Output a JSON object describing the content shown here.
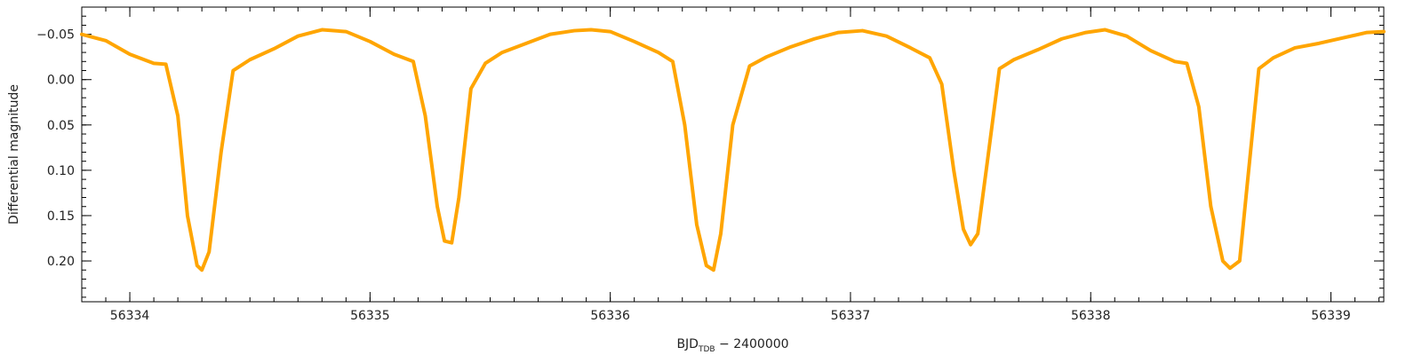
{
  "chart_data": {
    "type": "line",
    "xlabel_main": "BJD",
    "xlabel_sub": "TDB",
    "xlabel_rest": " − 2400000",
    "ylabel": "Differential magnitude",
    "xlim": [
      56333.8,
      56339.22
    ],
    "ylim": [
      0.245,
      -0.08
    ],
    "y_inverted": true,
    "xticks": [
      56334,
      56335,
      56336,
      56337,
      56338,
      56339
    ],
    "xtick_labels": [
      "56334",
      "56335",
      "56336",
      "56337",
      "56338",
      "56339"
    ],
    "yticks": [
      -0.05,
      0.0,
      0.05,
      0.1,
      0.15,
      0.2
    ],
    "ytick_labels": [
      "−0.05",
      "0.00",
      "0.05",
      "0.10",
      "0.15",
      "0.20"
    ],
    "grid": false,
    "series": [
      {
        "color": "#FFA500",
        "x": [
          56333.8,
          56333.9,
          56334.0,
          56334.1,
          56334.15,
          56334.2,
          56334.24,
          56334.28,
          56334.3,
          56334.33,
          56334.38,
          56334.43,
          56334.5,
          56334.6,
          56334.7,
          56334.8,
          56334.9,
          56335.0,
          56335.1,
          56335.18,
          56335.23,
          56335.28,
          56335.31,
          56335.34,
          56335.37,
          56335.42,
          56335.48,
          56335.55,
          56335.65,
          56335.75,
          56335.85,
          56335.92,
          56336.0,
          56336.1,
          56336.2,
          56336.26,
          56336.31,
          56336.36,
          56336.4,
          56336.43,
          56336.46,
          56336.51,
          56336.58,
          56336.65,
          56336.75,
          56336.85,
          56336.95,
          56337.05,
          56337.15,
          56337.25,
          56337.33,
          56337.38,
          56337.43,
          56337.47,
          56337.5,
          56337.53,
          56337.57,
          56337.62,
          56337.68,
          56337.78,
          56337.88,
          56337.98,
          56338.06,
          56338.15,
          56338.25,
          56338.35,
          56338.4,
          56338.45,
          56338.5,
          56338.55,
          56338.58,
          56338.62,
          56338.65,
          56338.7,
          56338.76,
          56338.85,
          56338.95,
          56339.05,
          56339.15,
          56339.22
        ],
        "y": [
          -0.05,
          -0.043,
          -0.028,
          -0.018,
          -0.017,
          0.04,
          0.15,
          0.205,
          0.21,
          0.19,
          0.08,
          -0.01,
          -0.022,
          -0.034,
          -0.048,
          -0.055,
          -0.053,
          -0.042,
          -0.028,
          -0.02,
          0.04,
          0.14,
          0.178,
          0.18,
          0.13,
          0.01,
          -0.018,
          -0.03,
          -0.04,
          -0.05,
          -0.054,
          -0.055,
          -0.053,
          -0.042,
          -0.03,
          -0.02,
          0.05,
          0.16,
          0.205,
          0.21,
          0.17,
          0.05,
          -0.015,
          -0.025,
          -0.036,
          -0.045,
          -0.052,
          -0.054,
          -0.048,
          -0.035,
          -0.024,
          0.005,
          0.1,
          0.165,
          0.182,
          0.17,
          0.09,
          -0.012,
          -0.022,
          -0.033,
          -0.045,
          -0.052,
          -0.055,
          -0.048,
          -0.032,
          -0.02,
          -0.018,
          0.03,
          0.14,
          0.2,
          0.208,
          0.2,
          0.12,
          -0.012,
          -0.024,
          -0.035,
          -0.04,
          -0.046,
          -0.052,
          -0.053
        ]
      }
    ]
  }
}
